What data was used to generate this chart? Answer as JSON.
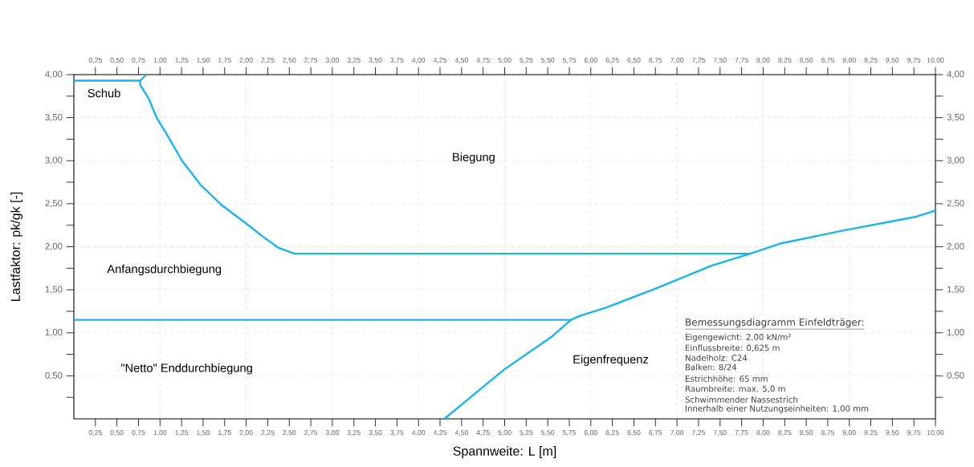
{
  "chart_data": {
    "type": "line",
    "xlabel": "Spannweite: L [m]",
    "ylabel": "Lastfaktor: pk/gk [-]",
    "xlim": [
      0,
      10
    ],
    "ylim": [
      0,
      4
    ],
    "x2lim": [
      0,
      10
    ],
    "y2lim": [
      0,
      4
    ],
    "xticks": [
      {
        "value": 0.25,
        "label": "0,25"
      },
      {
        "value": 0.5,
        "label": "0,50"
      },
      {
        "value": 0.75,
        "label": "0,75"
      },
      {
        "value": 1,
        "label": "1,00"
      },
      {
        "value": 1.25,
        "label": "1,25"
      },
      {
        "value": 1.5,
        "label": "1,50"
      },
      {
        "value": 1.75,
        "label": "1,75"
      },
      {
        "value": 2,
        "label": "2,00"
      },
      {
        "value": 2.25,
        "label": "2,25"
      },
      {
        "value": 2.5,
        "label": "2,50"
      },
      {
        "value": 2.75,
        "label": "2,75"
      },
      {
        "value": 3,
        "label": "3,00"
      },
      {
        "value": 3.25,
        "label": "3,25"
      },
      {
        "value": 3.5,
        "label": "3,50"
      },
      {
        "value": 3.75,
        "label": "3,75"
      },
      {
        "value": 4,
        "label": "4,00"
      },
      {
        "value": 4.25,
        "label": "4,25"
      },
      {
        "value": 4.5,
        "label": "4,50"
      },
      {
        "value": 4.75,
        "label": "4,75"
      },
      {
        "value": 5,
        "label": "5,00"
      },
      {
        "value": 5.25,
        "label": "5,25"
      },
      {
        "value": 5.5,
        "label": "5,50"
      },
      {
        "value": 5.75,
        "label": "5,75"
      },
      {
        "value": 6,
        "label": "6,00"
      },
      {
        "value": 6.25,
        "label": "6,25"
      },
      {
        "value": 6.5,
        "label": "6,50"
      },
      {
        "value": 6.75,
        "label": "6,75"
      },
      {
        "value": 7,
        "label": "7,00"
      },
      {
        "value": 7.25,
        "label": "7,25"
      },
      {
        "value": 7.5,
        "label": "7,50"
      },
      {
        "value": 7.75,
        "label": "7,75"
      },
      {
        "value": 8,
        "label": "8,00"
      },
      {
        "value": 8.25,
        "label": "8,25"
      },
      {
        "value": 8.5,
        "label": "8,50"
      },
      {
        "value": 8.75,
        "label": "8,75"
      },
      {
        "value": 9,
        "label": "9,00"
      },
      {
        "value": 9.25,
        "label": "9,25"
      },
      {
        "value": 9.5,
        "label": "9,50"
      },
      {
        "value": 9.75,
        "label": "9,75"
      },
      {
        "value": 10,
        "label": "10,00"
      }
    ],
    "x2ticks": [
      {
        "value": 0.25,
        "label": "0,25"
      },
      {
        "value": 0.5,
        "label": "0,50"
      },
      {
        "value": 0.75,
        "label": "0,75"
      },
      {
        "value": 1,
        "label": "1,00"
      },
      {
        "value": 1.25,
        "label": "1,25"
      },
      {
        "value": 1.5,
        "label": "1,50"
      },
      {
        "value": 1.75,
        "label": "1,75"
      },
      {
        "value": 2,
        "label": "2,00"
      },
      {
        "value": 2.25,
        "label": "2,25"
      },
      {
        "value": 2.5,
        "label": "2,50"
      },
      {
        "value": 2.75,
        "label": "2,75"
      },
      {
        "value": 3,
        "label": "3,00"
      },
      {
        "value": 3.25,
        "label": "3,25"
      },
      {
        "value": 3.5,
        "label": "3,50"
      },
      {
        "value": 3.75,
        "label": "3,75"
      },
      {
        "value": 4,
        "label": "4,00"
      },
      {
        "value": 4.25,
        "label": "4,25"
      },
      {
        "value": 4.5,
        "label": "4,50"
      },
      {
        "value": 4.75,
        "label": "4,75"
      },
      {
        "value": 5,
        "label": "5,00"
      },
      {
        "value": 5.25,
        "label": "5,25"
      },
      {
        "value": 5.5,
        "label": "5,50"
      },
      {
        "value": 5.75,
        "label": "5,75"
      },
      {
        "value": 6,
        "label": "6,00"
      },
      {
        "value": 6.25,
        "label": "6,25"
      },
      {
        "value": 6.5,
        "label": "6,50"
      },
      {
        "value": 6.75,
        "label": "6,75"
      },
      {
        "value": 7,
        "label": "7,00"
      },
      {
        "value": 7.25,
        "label": "7,25"
      },
      {
        "value": 7.5,
        "label": "7,50"
      },
      {
        "value": 7.75,
        "label": "7,75"
      },
      {
        "value": 8,
        "label": "8,00"
      },
      {
        "value": 8.25,
        "label": "8,25"
      },
      {
        "value": 8.5,
        "label": "8,50"
      },
      {
        "value": 8.75,
        "label": "8,75"
      },
      {
        "value": 9,
        "label": "9,00"
      },
      {
        "value": 9.25,
        "label": "9,25"
      },
      {
        "value": 9.5,
        "label": "9,50"
      },
      {
        "value": 9.75,
        "label": "9,75"
      },
      {
        "value": 10,
        "label": "10,00"
      }
    ],
    "yticks": [
      {
        "value": 0.25,
        "label": null
      },
      {
        "value": 0.5,
        "label": "0,50"
      },
      {
        "value": 0.75,
        "label": null
      },
      {
        "value": 1,
        "label": "1,00"
      },
      {
        "value": 1.25,
        "label": null
      },
      {
        "value": 1.5,
        "label": "1,50"
      },
      {
        "value": 1.75,
        "label": null
      },
      {
        "value": 2,
        "label": "2,00"
      },
      {
        "value": 2.25,
        "label": null
      },
      {
        "value": 2.5,
        "label": "2,50"
      },
      {
        "value": 2.75,
        "label": null
      },
      {
        "value": 3,
        "label": "3,00"
      },
      {
        "value": 3.25,
        "label": null
      },
      {
        "value": 3.5,
        "label": "3,50"
      },
      {
        "value": 3.75,
        "label": null
      },
      {
        "value": 4,
        "label": "4,00"
      }
    ],
    "y2ticks": [
      {
        "value": 0.25,
        "label": null
      },
      {
        "value": 0.5,
        "label": "0,50"
      },
      {
        "value": 0.75,
        "label": null
      },
      {
        "value": 1,
        "label": "1,00"
      },
      {
        "value": 1.25,
        "label": null
      },
      {
        "value": 1.5,
        "label": "1,50"
      },
      {
        "value": 1.75,
        "label": null
      },
      {
        "value": 2,
        "label": "2,00"
      },
      {
        "value": 2.25,
        "label": null
      },
      {
        "value": 2.5,
        "label": "2,50"
      },
      {
        "value": 2.75,
        "label": null
      },
      {
        "value": 3,
        "label": "3,00"
      },
      {
        "value": 3.25,
        "label": null
      },
      {
        "value": 3.5,
        "label": "3,50"
      },
      {
        "value": 3.75,
        "label": null
      },
      {
        "value": 4,
        "label": "4,00"
      }
    ],
    "grid": true,
    "marker": "none",
    "line_style": "solid",
    "series": [
      {
        "color": "#19b4f0",
        "x": [
          0,
          0.77
        ],
        "values": [
          3.93,
          3.93
        ]
      },
      {
        "color": "#19b4f0",
        "x": [
          0.84,
          0.77,
          0.77,
          0.87,
          0.96,
          1.07,
          1.255,
          1.47,
          1.72,
          2.0,
          2.19,
          2.37,
          2.56,
          2.64,
          7.85
        ],
        "values": [
          4.0,
          3.93,
          3.88,
          3.72,
          3.5,
          3.32,
          3.0,
          2.72,
          2.48,
          2.27,
          2.12,
          1.99,
          1.92,
          1.92,
          1.92
        ]
      },
      {
        "color": "#19b4f0",
        "x": [
          0,
          5.77
        ],
        "values": [
          1.15,
          1.15
        ]
      },
      {
        "color": "#19b4f0",
        "x": [
          4.3,
          4.99,
          5.54,
          5.77,
          5.88,
          6.17,
          6.77,
          7.4,
          7.85,
          8.21,
          8.89,
          9.78,
          10.0
        ],
        "values": [
          0.0,
          0.57,
          0.95,
          1.15,
          1.2,
          1.29,
          1.52,
          1.78,
          1.92,
          2.04,
          2.18,
          2.35,
          2.42
        ]
      }
    ],
    "annotations": [
      "Schub",
      "Biegung",
      "Anfangsdurchbiegung",
      "\"Netto\" Enddurchbiegung",
      "Eigenfrequenz",
      "Bemessungsdiagramm  Einfeldträger:",
      "Eigengewicht: 2,00  kN/m²",
      "Einflussbreite: 0,625  m",
      "Nadelholz:      C24",
      "Balken:          8/24",
      "Estrichhöhe:   65  mm",
      "Raumbreite:   max.  5,0  m",
      "Schwimmender  Nassestrich",
      "Innerhalb  einer  Nutzungseinheiten:  1,00  mm"
    ]
  }
}
